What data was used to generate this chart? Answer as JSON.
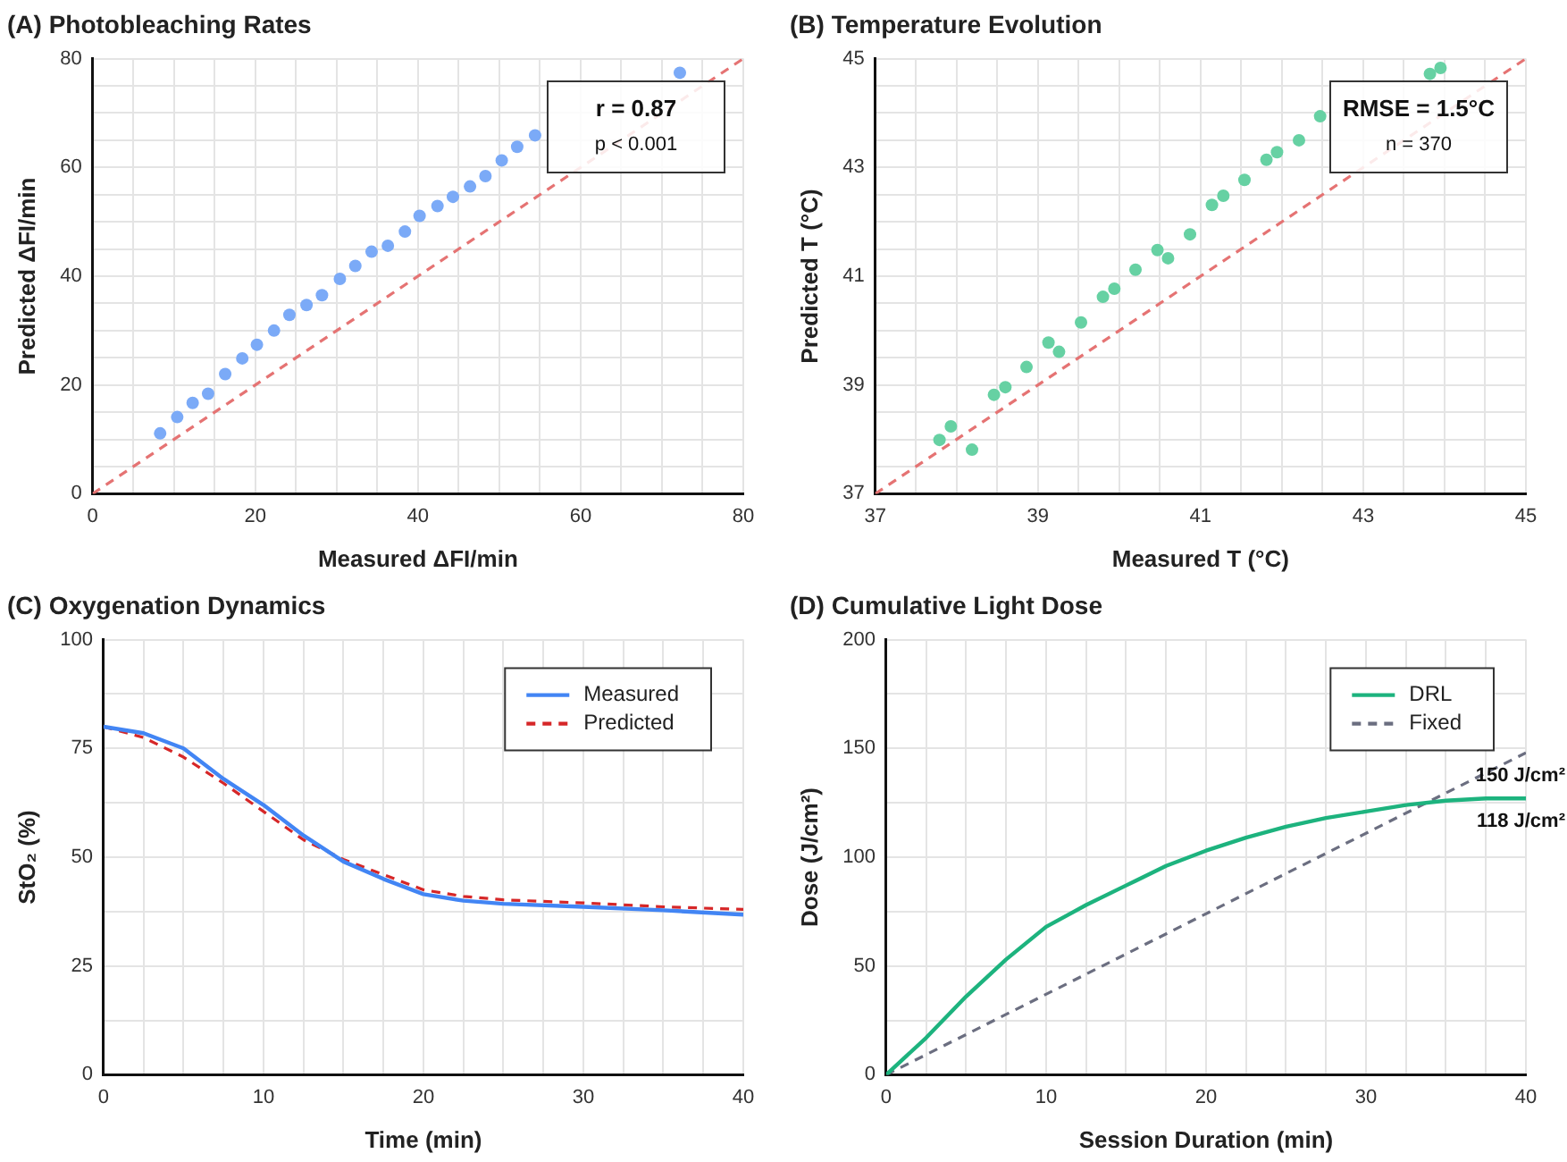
{
  "chart_data": [
    {
      "type": "scatter",
      "title": "(A) Photobleaching Rates",
      "xlabel": "Measured ΔFI/min",
      "ylabel": "Predicted ΔFI/min",
      "xlim": [
        0,
        80
      ],
      "ylim": [
        0,
        80
      ],
      "xticks": [
        0,
        {
          "value": 5,
          "label": null
        },
        {
          "value": 10,
          "label": null
        },
        {
          "value": 15,
          "label": null
        },
        20,
        {
          "value": 25,
          "label": null
        },
        {
          "value": 30,
          "label": null
        },
        {
          "value": 35,
          "label": null
        },
        40,
        {
          "value": 45,
          "label": null
        },
        {
          "value": 50,
          "label": null
        },
        {
          "value": 55,
          "label": null
        },
        60,
        {
          "value": 65,
          "label": null
        },
        {
          "value": 70,
          "label": null
        },
        {
          "value": 75,
          "label": null
        },
        80
      ],
      "yticks": [
        0,
        {
          "value": 5,
          "label": null
        },
        {
          "value": 10,
          "label": null
        },
        {
          "value": 15,
          "label": null
        },
        20,
        {
          "value": 25,
          "label": null
        },
        {
          "value": 30,
          "label": null
        },
        {
          "value": 35,
          "label": null
        },
        40,
        {
          "value": 45,
          "label": null
        },
        {
          "value": 50,
          "label": null
        },
        {
          "value": 55,
          "label": null
        },
        60,
        {
          "value": 65,
          "label": null
        },
        {
          "value": 70,
          "label": null
        },
        {
          "value": 75,
          "label": null
        },
        80
      ],
      "grid": true,
      "annotations": [
        "r = 0.87",
        "p < 0.001"
      ],
      "series": [
        {
          "color": "#7baaf7",
          "marker": "circle",
          "x": [
            8.3,
            10.4,
            12.3,
            14.2,
            16.3,
            18.4,
            20.2,
            22.3,
            24.2,
            26.3,
            28.2,
            30.4,
            32.3,
            34.3,
            36.3,
            38.4,
            40.2,
            42.4,
            44.3,
            46.4,
            48.3,
            50.3,
            52.2,
            54.4,
            72.2
          ],
          "values": [
            11.1,
            14.1,
            16.7,
            18.4,
            22,
            24.9,
            27.4,
            30,
            32.9,
            34.7,
            36.5,
            39.5,
            41.9,
            44.5,
            45.6,
            48.2,
            51.1,
            52.9,
            54.6,
            56.5,
            58.4,
            61.3,
            63.8,
            65.9,
            77.4
          ]
        },
        {
          "type": "line",
          "marker": "none",
          "color": "#e57373",
          "line_style": "dashed",
          "x": [
            0,
            80
          ],
          "values": [
            0,
            80
          ]
        }
      ]
    },
    {
      "type": "scatter",
      "title": "(B) Temperature Evolution",
      "xlabel": "Measured T (°C)",
      "ylabel": "Predicted T (°C)",
      "xlim": [
        37,
        45
      ],
      "ylim": [
        37,
        45
      ],
      "xticks": [
        37,
        {
          "value": 37.5,
          "label": null
        },
        {
          "value": 38,
          "label": null
        },
        {
          "value": 38.5,
          "label": null
        },
        39,
        {
          "value": 39.5,
          "label": null
        },
        {
          "value": 40,
          "label": null
        },
        {
          "value": 40.5,
          "label": null
        },
        41,
        {
          "value": 41.5,
          "label": null
        },
        {
          "value": 42,
          "label": null
        },
        {
          "value": 42.5,
          "label": null
        },
        43,
        {
          "value": 43.5,
          "label": null
        },
        {
          "value": 44,
          "label": null
        },
        {
          "value": 44.5,
          "label": null
        },
        45
      ],
      "yticks": [
        37,
        {
          "value": 37.5,
          "label": null
        },
        {
          "value": 38,
          "label": null
        },
        {
          "value": 38.5,
          "label": null
        },
        39,
        {
          "value": 39.5,
          "label": null
        },
        {
          "value": 40,
          "label": null
        },
        {
          "value": 40.5,
          "label": null
        },
        41,
        {
          "value": 41.5,
          "label": null
        },
        {
          "value": 42,
          "label": null
        },
        {
          "value": 42.5,
          "label": null
        },
        43,
        {
          "value": 43.5,
          "label": null
        },
        {
          "value": 44,
          "label": null
        },
        {
          "value": 44.5,
          "label": null
        },
        45
      ],
      "grid": true,
      "annotations": [
        "RMSE = 1.5°C",
        "n = 370"
      ],
      "series": [
        {
          "color": "#66d1a3",
          "marker": "circle",
          "x": [
            37.79,
            37.93,
            38.19,
            38.46,
            38.6,
            38.86,
            39.13,
            39.26,
            39.53,
            39.8,
            39.94,
            40.2,
            40.47,
            40.6,
            40.87,
            41.14,
            41.28,
            41.54,
            41.81,
            41.94,
            42.21,
            42.47,
            43.82,
            43.95
          ],
          "values": [
            37.99,
            38.24,
            37.81,
            38.82,
            38.96,
            39.33,
            39.78,
            39.61,
            40.15,
            40.62,
            40.77,
            41.12,
            41.48,
            41.33,
            41.77,
            42.31,
            42.48,
            42.77,
            43.14,
            43.28,
            43.5,
            43.94,
            44.72,
            44.83
          ]
        },
        {
          "type": "line",
          "marker": "none",
          "color": "#e57373",
          "line_style": "dashed",
          "x": [
            37,
            45
          ],
          "values": [
            37,
            45
          ]
        }
      ]
    },
    {
      "type": "line",
      "title": "(C) Oxygenation Dynamics",
      "xlabel": "Time (min)",
      "ylabel": "StO₂ (%)",
      "xlim": [
        0,
        40
      ],
      "ylim": [
        0,
        100
      ],
      "xticks": [
        0,
        {
          "value": 2.5,
          "label": null
        },
        {
          "value": 5,
          "label": null
        },
        {
          "value": 7.5,
          "label": null
        },
        10,
        {
          "value": 12.5,
          "label": null
        },
        {
          "value": 15,
          "label": null
        },
        {
          "value": 17.5,
          "label": null
        },
        20,
        {
          "value": 22.5,
          "label": null
        },
        {
          "value": 25,
          "label": null
        },
        {
          "value": 27.5,
          "label": null
        },
        30,
        {
          "value": 32.5,
          "label": null
        },
        {
          "value": 35,
          "label": null
        },
        {
          "value": 37.5,
          "label": null
        },
        40
      ],
      "yticks": [
        0,
        {
          "value": 12.5,
          "label": null
        },
        25,
        {
          "value": 37.5,
          "label": null
        },
        50,
        {
          "value": 62.5,
          "label": null
        },
        75,
        {
          "value": 87.5,
          "label": null
        },
        100
      ],
      "grid": true,
      "legend": "top right",
      "x": [
        0,
        2.5,
        5,
        7.5,
        10,
        12.5,
        15,
        17.5,
        20,
        22.5,
        25,
        30,
        35,
        40
      ],
      "series": [
        {
          "name": "Measured",
          "color": "#4285f4",
          "values": [
            80,
            78.5,
            75,
            68,
            62,
            55,
            49,
            45,
            41.5,
            40,
            39.3,
            38.6,
            37.8,
            36.8
          ]
        },
        {
          "name": "Predicted",
          "color": "#d62728",
          "line_style": "dashed",
          "values": [
            80,
            77.5,
            73,
            67,
            60.5,
            54,
            49.5,
            46,
            42.5,
            41,
            40.2,
            39.5,
            38.6,
            38
          ]
        }
      ]
    },
    {
      "type": "line",
      "title": "(D) Cumulative Light Dose",
      "xlabel": "Session Duration (min)",
      "ylabel": "Dose (J/cm²)",
      "xlim": [
        0,
        40
      ],
      "ylim": [
        0,
        200
      ],
      "xticks": [
        0,
        {
          "value": 2.5,
          "label": null
        },
        {
          "value": 5,
          "label": null
        },
        {
          "value": 7.5,
          "label": null
        },
        10,
        {
          "value": 12.5,
          "label": null
        },
        {
          "value": 15,
          "label": null
        },
        {
          "value": 17.5,
          "label": null
        },
        20,
        {
          "value": 22.5,
          "label": null
        },
        {
          "value": 25,
          "label": null
        },
        {
          "value": 27.5,
          "label": null
        },
        30,
        {
          "value": 32.5,
          "label": null
        },
        {
          "value": 35,
          "label": null
        },
        {
          "value": 37.5,
          "label": null
        },
        40
      ],
      "yticks": [
        0,
        {
          "value": 25,
          "label": null
        },
        50,
        {
          "value": 75,
          "label": null
        },
        100,
        {
          "value": 125,
          "label": null
        },
        150,
        {
          "value": 175,
          "label": null
        },
        200
      ],
      "grid": true,
      "legend": "top right",
      "annotations": [
        {
          "text": "150 J/cm²",
          "x": 40,
          "y": 148
        },
        {
          "text": "118 J/cm²",
          "x": 40,
          "y": 127
        }
      ],
      "series": [
        {
          "name": "DRL",
          "color": "#1db37e",
          "x": [
            0,
            2.5,
            5,
            7.5,
            10,
            12.5,
            15,
            17.5,
            20,
            22.5,
            25,
            27.5,
            30,
            32.5,
            35,
            37.5,
            40
          ],
          "values": [
            0,
            17,
            36,
            53,
            68,
            78,
            87,
            96,
            103,
            109,
            114,
            118,
            121,
            124,
            126,
            127,
            127
          ]
        },
        {
          "name": "Fixed",
          "color": "#6b6e80",
          "line_style": "dashed",
          "x": [
            0,
            40
          ],
          "values": [
            0,
            148
          ]
        }
      ]
    }
  ]
}
